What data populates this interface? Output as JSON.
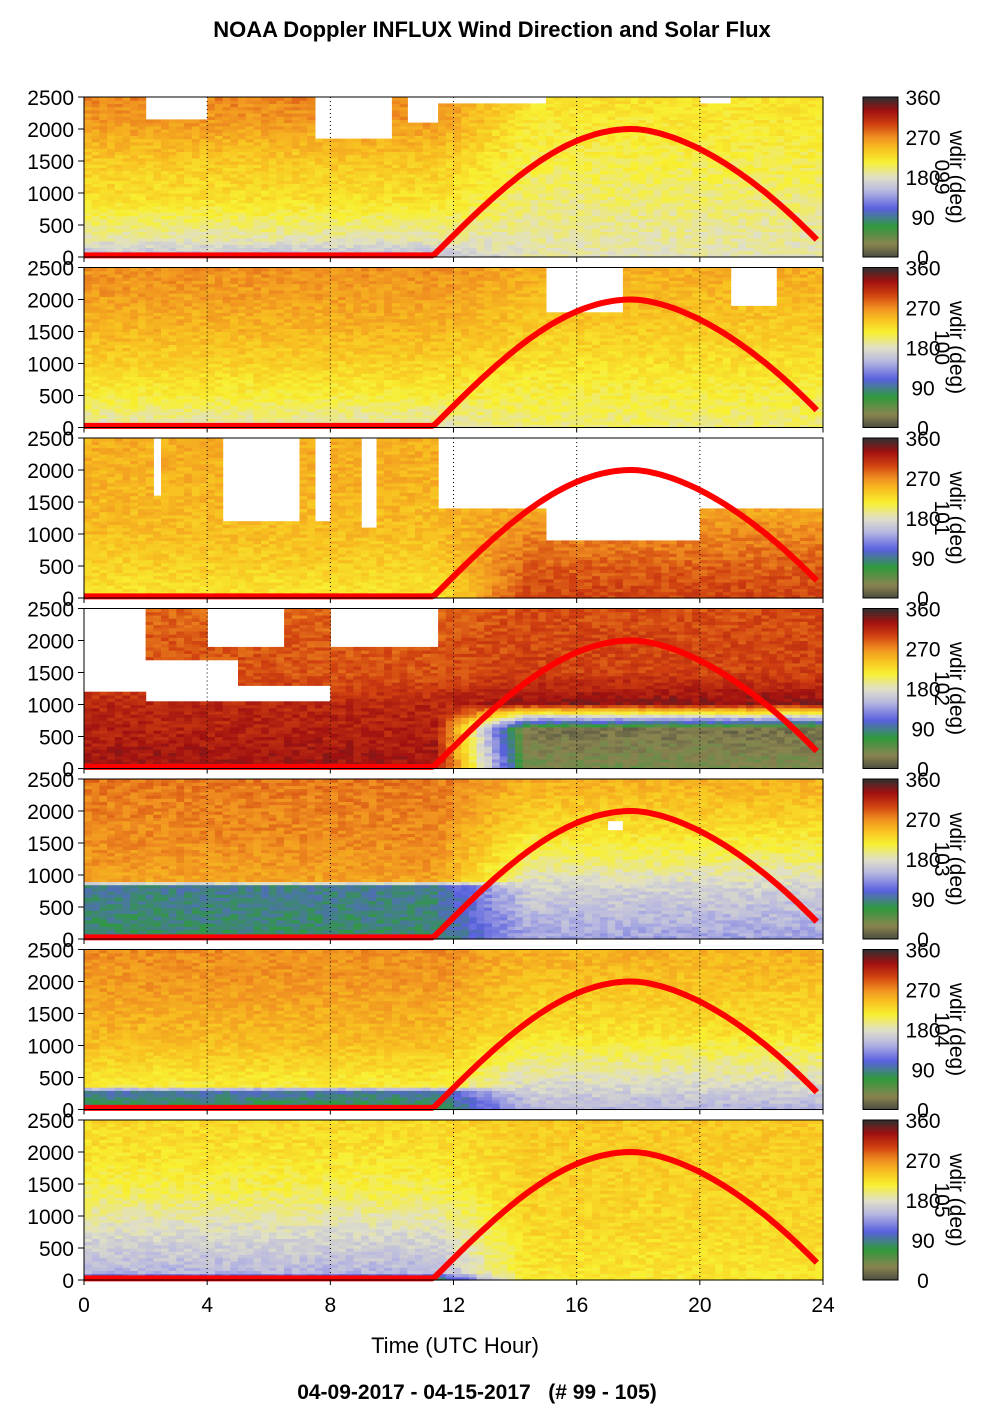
{
  "title": "NOAA Doppler INFLUX Wind Direction and Solar Flux",
  "footer": "04-09-2017 - 04-15-2017   (# 99 - 105)",
  "colors": {
    "solar_line": "#ff0000",
    "gridline": "#000000",
    "missing": "#ffffff"
  },
  "chart_data": {
    "type": "heatmap",
    "xlabel": "Time (UTC Hour)",
    "xlim": [
      0,
      24
    ],
    "x_ticks": [
      0,
      4,
      8,
      12,
      16,
      20,
      24
    ],
    "y_ticks": [
      0,
      500,
      1000,
      1500,
      2000,
      2500
    ],
    "ylim": [
      0,
      2500
    ],
    "colorbar": {
      "label": "wdir (deg)",
      "range": [
        0,
        360
      ],
      "ticks": [
        0,
        90,
        180,
        270,
        360
      ],
      "tick_labels": [
        "0",
        "90",
        "180",
        "270",
        "360"
      ],
      "stops": [
        {
          "v": 0,
          "c": "#4a4a40"
        },
        {
          "v": 30,
          "c": "#8a8450"
        },
        {
          "v": 70,
          "c": "#2f9a3c"
        },
        {
          "v": 110,
          "c": "#5a60e0"
        },
        {
          "v": 150,
          "c": "#b8b8e0"
        },
        {
          "v": 180,
          "c": "#e0e0c8"
        },
        {
          "v": 215,
          "c": "#f8f030"
        },
        {
          "v": 245,
          "c": "#f8c020"
        },
        {
          "v": 270,
          "c": "#f09020"
        },
        {
          "v": 300,
          "c": "#d04010"
        },
        {
          "v": 330,
          "c": "#a01010"
        },
        {
          "v": 360,
          "c": "#303030"
        }
      ]
    },
    "solar_flux": {
      "units_max": 2000,
      "sunrise_hour": 11.3,
      "peak_hour": 17.8,
      "end_hour": 23.8,
      "end_value": 270
    },
    "panels": [
      {
        "id": "2017-04-09",
        "overlay": "099",
        "missing": [
          [
            2.0,
            4.0,
            2150,
            2500
          ],
          [
            7.5,
            10.0,
            1850,
            2500
          ],
          [
            10.5,
            11.3,
            2100,
            2500
          ],
          [
            11.3,
            14.8,
            2400,
            2500
          ],
          [
            20.0,
            21.0,
            2400,
            2500
          ]
        ],
        "profile": [
          [
            0,
            155
          ],
          [
            300,
            190
          ],
          [
            900,
            225
          ],
          [
            1500,
            240
          ],
          [
            2100,
            265
          ],
          [
            2500,
            275
          ]
        ],
        "profile_day": [
          [
            0,
            185
          ],
          [
            600,
            195
          ],
          [
            1200,
            205
          ],
          [
            1800,
            215
          ],
          [
            2500,
            225
          ]
        ]
      },
      {
        "id": "2017-04-10",
        "overlay": "100",
        "missing": [
          [
            14.8,
            17.5,
            1800,
            2500
          ],
          [
            21.0,
            22.5,
            1900,
            2500
          ]
        ],
        "profile": [
          [
            0,
            185
          ],
          [
            500,
            215
          ],
          [
            1000,
            235
          ],
          [
            1500,
            250
          ],
          [
            2000,
            262
          ],
          [
            2500,
            270
          ]
        ],
        "profile_day": [
          [
            0,
            200
          ],
          [
            800,
            220
          ],
          [
            1600,
            240
          ],
          [
            2500,
            255
          ]
        ]
      },
      {
        "id": "2017-04-11",
        "overlay": "101",
        "missing": [
          [
            2.1,
            2.4,
            1600,
            2500
          ],
          [
            4.3,
            7.0,
            1200,
            2500
          ],
          [
            7.5,
            8.0,
            1200,
            2500
          ],
          [
            9.0,
            9.5,
            1100,
            2500
          ],
          [
            11.3,
            24,
            1400,
            2500
          ],
          [
            15.0,
            20.0,
            900,
            1400
          ]
        ],
        "profile": [
          [
            0,
            220
          ],
          [
            500,
            235
          ],
          [
            1000,
            245
          ],
          [
            1500,
            250
          ],
          [
            2500,
            255
          ]
        ],
        "profile_day": [
          [
            0,
            300
          ],
          [
            400,
            290
          ],
          [
            900,
            275
          ],
          [
            1300,
            260
          ],
          [
            2500,
            255
          ]
        ]
      },
      {
        "id": "2017-04-12",
        "overlay": "102",
        "missing": [
          [
            0,
            1.8,
            1200,
            2500
          ],
          [
            1.8,
            5.0,
            1050,
            1700
          ],
          [
            5.0,
            8.0,
            1050,
            1300
          ],
          [
            4.0,
            6.5,
            1900,
            2500
          ],
          [
            8.0,
            11.3,
            1900,
            2500
          ],
          [
            11.3,
            24,
            2480,
            2500
          ]
        ],
        "profile": [
          [
            0,
            330
          ],
          [
            500,
            320
          ],
          [
            1000,
            315
          ],
          [
            1400,
            295
          ],
          [
            2000,
            290
          ],
          [
            2500,
            285
          ]
        ],
        "profile_day": [
          [
            0,
            40
          ],
          [
            600,
            20
          ],
          [
            1000,
            335
          ],
          [
            1500,
            300
          ],
          [
            2500,
            295
          ]
        ]
      },
      {
        "id": "2017-04-13",
        "overlay": "103",
        "missing": [
          [
            16.8,
            17.5,
            1700,
            1850
          ]
        ],
        "profile": [
          [
            0,
            80
          ],
          [
            800,
            90
          ],
          [
            900,
            260
          ],
          [
            1500,
            270
          ],
          [
            2000,
            275
          ],
          [
            2500,
            280
          ]
        ],
        "profile_day": [
          [
            0,
            140
          ],
          [
            700,
            165
          ],
          [
            1200,
            200
          ],
          [
            1900,
            235
          ],
          [
            2500,
            255
          ]
        ]
      },
      {
        "id": "2017-04-14",
        "overlay": "104",
        "missing": [],
        "profile": [
          [
            0,
            70
          ],
          [
            250,
            95
          ],
          [
            350,
            215
          ],
          [
            1000,
            245
          ],
          [
            1800,
            262
          ],
          [
            2500,
            270
          ]
        ],
        "profile_day": [
          [
            0,
            150
          ],
          [
            600,
            190
          ],
          [
            1200,
            225
          ],
          [
            2500,
            255
          ]
        ]
      },
      {
        "id": "2017-04-15",
        "overlay": "105",
        "missing": [],
        "profile": [
          [
            0,
            80
          ],
          [
            100,
            150
          ],
          [
            700,
            175
          ],
          [
            1300,
            205
          ],
          [
            2000,
            225
          ],
          [
            2500,
            230
          ]
        ],
        "profile_day": [
          [
            0,
            220
          ],
          [
            800,
            230
          ],
          [
            1600,
            235
          ],
          [
            2500,
            240
          ]
        ]
      }
    ]
  }
}
